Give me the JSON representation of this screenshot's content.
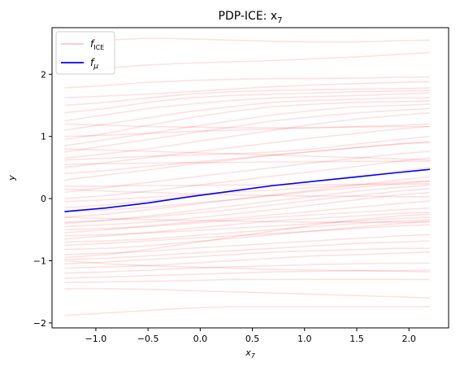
{
  "chart_data": {
    "type": "line",
    "title": "PDP-ICE: x",
    "title_subscript": "7",
    "xlabel": "x",
    "xlabel_subscript": "7",
    "ylabel": "y",
    "xlim": [
      -1.42,
      2.38
    ],
    "ylim": [
      -2.08,
      2.75
    ],
    "xticks": [
      -1.0,
      -0.5,
      0.0,
      0.5,
      1.0,
      1.5,
      2.0
    ],
    "xtick_labels": [
      "−1.0",
      "−0.5",
      "0.0",
      "0.5",
      "1.0",
      "1.5",
      "2.0"
    ],
    "yticks": [
      -2,
      -1,
      0,
      1,
      2
    ],
    "ytick_labels": [
      "−2",
      "−1",
      "0",
      "1",
      "2"
    ],
    "grid": false,
    "legend_position": "top-left",
    "x": [
      -1.3,
      -0.9,
      -0.5,
      -0.1,
      0.3,
      0.7,
      1.1,
      1.5,
      1.9,
      2.2
    ],
    "series": [
      {
        "name": "f",
        "name_subscript": "ICE",
        "color": "#ff0000",
        "opacity": 0.12,
        "is_ensemble": true,
        "lines": [
          [
            2.45,
            2.55,
            2.58,
            2.57,
            2.55,
            2.53,
            2.52,
            2.52,
            2.54,
            2.55
          ],
          [
            2.05,
            2.1,
            2.15,
            2.18,
            2.2,
            2.22,
            2.25,
            2.28,
            2.32,
            2.35
          ],
          [
            1.78,
            1.82,
            1.87,
            1.9,
            1.92,
            1.93,
            1.93,
            1.94,
            1.95,
            1.96
          ],
          [
            1.62,
            1.65,
            1.68,
            1.72,
            1.76,
            1.8,
            1.83,
            1.85,
            1.87,
            1.88
          ],
          [
            1.5,
            1.55,
            1.62,
            1.68,
            1.72,
            1.74,
            1.75,
            1.76,
            1.77,
            1.78
          ],
          [
            1.38,
            1.45,
            1.55,
            1.62,
            1.66,
            1.68,
            1.7,
            1.72,
            1.73,
            1.74
          ],
          [
            1.25,
            1.35,
            1.45,
            1.52,
            1.58,
            1.62,
            1.64,
            1.66,
            1.68,
            1.7
          ],
          [
            1.1,
            1.2,
            1.3,
            1.4,
            1.48,
            1.55,
            1.58,
            1.6,
            1.62,
            1.62
          ],
          [
            0.95,
            1.05,
            1.18,
            1.3,
            1.4,
            1.48,
            1.52,
            1.55,
            1.56,
            1.57
          ],
          [
            0.85,
            0.95,
            1.05,
            1.15,
            1.25,
            1.35,
            1.42,
            1.48,
            1.5,
            1.52
          ],
          [
            0.75,
            0.85,
            0.95,
            1.05,
            1.15,
            1.25,
            1.32,
            1.38,
            1.42,
            1.45
          ],
          [
            0.65,
            0.72,
            0.8,
            0.9,
            1.0,
            1.1,
            1.2,
            1.28,
            1.34,
            1.38
          ],
          [
            0.62,
            0.65,
            0.68,
            0.7,
            0.72,
            0.75,
            0.8,
            0.88,
            0.95,
            1.0
          ],
          [
            0.5,
            0.58,
            0.66,
            0.74,
            0.82,
            0.9,
            0.98,
            1.05,
            1.12,
            1.16
          ],
          [
            0.4,
            0.45,
            0.52,
            0.58,
            0.64,
            0.7,
            0.76,
            0.82,
            0.88,
            0.92
          ],
          [
            0.3,
            0.38,
            0.46,
            0.55,
            0.62,
            0.7,
            0.76,
            0.82,
            0.88,
            0.9
          ],
          [
            0.2,
            0.2,
            0.21,
            0.21,
            0.22,
            0.22,
            0.22,
            0.23,
            0.23,
            0.24
          ],
          [
            0.1,
            0.18,
            0.26,
            0.34,
            0.42,
            0.5,
            0.58,
            0.65,
            0.72,
            0.76
          ],
          [
            0.0,
            0.05,
            0.12,
            0.2,
            0.28,
            0.36,
            0.44,
            0.52,
            0.6,
            0.66
          ],
          [
            -0.05,
            -0.02,
            0.02,
            0.06,
            0.1,
            0.14,
            0.18,
            0.22,
            0.26,
            0.28
          ],
          [
            -0.15,
            -0.1,
            -0.04,
            0.04,
            0.12,
            0.2,
            0.28,
            0.36,
            0.44,
            0.5
          ],
          [
            -0.22,
            -0.18,
            -0.14,
            -0.08,
            -0.02,
            0.05,
            0.12,
            0.18,
            0.24,
            0.28
          ],
          [
            -0.3,
            -0.25,
            -0.18,
            -0.1,
            -0.02,
            0.06,
            0.14,
            0.22,
            0.3,
            0.35
          ],
          [
            -0.38,
            -0.35,
            -0.3,
            -0.24,
            -0.18,
            -0.1,
            -0.02,
            0.05,
            0.12,
            0.16
          ],
          [
            -0.45,
            -0.42,
            -0.38,
            -0.32,
            -0.25,
            -0.18,
            -0.1,
            -0.02,
            0.06,
            0.1
          ],
          [
            -0.5,
            -0.48,
            -0.45,
            -0.4,
            -0.35,
            -0.3,
            -0.26,
            -0.22,
            -0.18,
            -0.15
          ],
          [
            -0.55,
            -0.5,
            -0.44,
            -0.38,
            -0.32,
            -0.26,
            -0.2,
            -0.14,
            -0.08,
            -0.04
          ],
          [
            -0.6,
            -0.58,
            -0.55,
            -0.52,
            -0.48,
            -0.44,
            -0.4,
            -0.36,
            -0.32,
            -0.3
          ],
          [
            -0.65,
            -0.6,
            -0.55,
            -0.48,
            -0.42,
            -0.36,
            -0.32,
            -0.28,
            -0.24,
            -0.22
          ],
          [
            -0.7,
            -0.68,
            -0.65,
            -0.6,
            -0.55,
            -0.5,
            -0.45,
            -0.4,
            -0.36,
            -0.34
          ],
          [
            -0.75,
            -0.72,
            -0.68,
            -0.64,
            -0.6,
            -0.56,
            -0.52,
            -0.48,
            -0.44,
            -0.42
          ],
          [
            -0.82,
            -0.8,
            -0.76,
            -0.7,
            -0.64,
            -0.58,
            -0.52,
            -0.46,
            -0.4,
            -0.36
          ],
          [
            -0.9,
            -0.88,
            -0.85,
            -0.8,
            -0.76,
            -0.72,
            -0.68,
            -0.64,
            -0.6,
            -0.58
          ],
          [
            -0.98,
            -0.96,
            -0.92,
            -0.88,
            -0.84,
            -0.8,
            -0.76,
            -0.72,
            -0.7,
            -0.68
          ],
          [
            -1.05,
            -1.02,
            -0.98,
            -0.94,
            -0.9,
            -0.86,
            -0.84,
            -0.82,
            -0.8,
            -0.8
          ],
          [
            -1.12,
            -1.1,
            -1.08,
            -1.04,
            -1.0,
            -0.96,
            -0.92,
            -0.9,
            -0.88,
            -0.86
          ],
          [
            -1.2,
            -1.18,
            -1.15,
            -1.12,
            -1.1,
            -1.08,
            -1.06,
            -1.05,
            -1.04,
            -1.04
          ],
          [
            -1.28,
            -1.26,
            -1.24,
            -1.22,
            -1.2,
            -1.18,
            -1.17,
            -1.16,
            -1.16,
            -1.15
          ],
          [
            -1.35,
            -1.34,
            -1.33,
            -1.32,
            -1.3,
            -1.3,
            -1.3,
            -1.3,
            -1.3,
            -1.3
          ],
          [
            -1.45,
            -1.45,
            -1.46,
            -1.48,
            -1.5,
            -1.52,
            -1.54,
            -1.56,
            -1.58,
            -1.6
          ],
          [
            -1.88,
            -1.84,
            -1.8,
            -1.76,
            -1.74,
            -1.74,
            -1.74,
            -1.74,
            -1.74,
            -1.74
          ],
          [
            0.55,
            0.56,
            0.57,
            0.58,
            0.58,
            0.59,
            0.59,
            0.6,
            0.6,
            0.6
          ],
          [
            -0.3,
            -0.32,
            -0.34,
            -0.35,
            -0.36,
            -0.37,
            -0.38,
            -0.38,
            -0.38,
            -0.38
          ],
          [
            1.0,
            1.02,
            1.05,
            1.08,
            1.1,
            1.12,
            1.14,
            1.16,
            1.18,
            1.2
          ],
          [
            -0.95,
            -0.9,
            -0.82,
            -0.72,
            -0.62,
            -0.52,
            -0.42,
            -0.34,
            -0.28,
            -0.25
          ],
          [
            0.15,
            0.12,
            0.1,
            0.08,
            0.06,
            0.05,
            0.04,
            0.04,
            0.03,
            0.03
          ],
          [
            1.2,
            1.18,
            1.16,
            1.15,
            1.14,
            1.14,
            1.14,
            1.15,
            1.16,
            1.16
          ],
          [
            -0.4,
            -0.35,
            -0.28,
            -0.2,
            -0.12,
            -0.04,
            0.04,
            0.12,
            0.18,
            0.22
          ],
          [
            -1.0,
            -1.05,
            -1.08,
            -1.1,
            -1.12,
            -1.14,
            -1.15,
            -1.16,
            -1.17,
            -1.18
          ],
          [
            0.8,
            0.78,
            0.76,
            0.74,
            0.72,
            0.7,
            0.68,
            0.66,
            0.64,
            0.62
          ]
        ]
      },
      {
        "name": "f",
        "name_subscript": "μ",
        "color": "#0000ff",
        "opacity": 1.0,
        "values": [
          -0.21,
          -0.15,
          -0.07,
          0.03,
          0.12,
          0.21,
          0.28,
          0.35,
          0.42,
          0.47
        ]
      }
    ]
  }
}
